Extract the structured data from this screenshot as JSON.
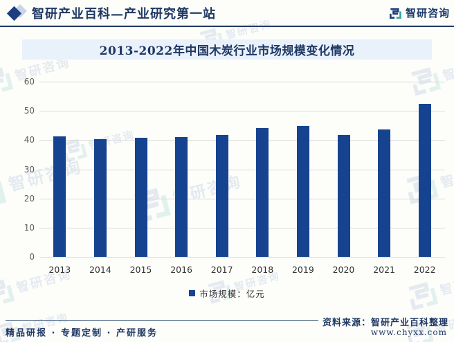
{
  "header": {
    "title": "智研产业百科—产业研究第一站",
    "brand": "智研咨询"
  },
  "banner": {
    "title": "2013-2022年中国木炭行业市场规模变化情况"
  },
  "chart_data": {
    "type": "bar",
    "title": "2013-2022年中国木炭行业市场规模变化情况",
    "categories": [
      "2013",
      "2014",
      "2015",
      "2016",
      "2017",
      "2018",
      "2019",
      "2020",
      "2021",
      "2022"
    ],
    "values": [
      41.2,
      40.4,
      40.8,
      41.0,
      41.8,
      44.0,
      44.8,
      41.8,
      43.6,
      52.5
    ],
    "series_name": "市场规模：亿元",
    "xlabel": "",
    "ylabel": "",
    "ylim": [
      0,
      60
    ],
    "yticks": [
      0,
      10,
      20,
      30,
      40,
      50,
      60
    ],
    "grid": true,
    "legend_position": "bottom",
    "bar_color": "#164390"
  },
  "legend": {
    "label": "市场规模：亿元"
  },
  "footer": {
    "services": "精品研报 · 专题定制 · 产研服务",
    "source": "资料来源：智研产业百科整理",
    "website": "www.chyxx.com"
  },
  "watermark": {
    "text": "智研咨询"
  },
  "colors": {
    "navy": "#1f3864",
    "bar": "#164390",
    "banner_bg": "#e9f1fb",
    "grid": "#d9d9d9",
    "logo_teal": "#2fa8a2"
  }
}
